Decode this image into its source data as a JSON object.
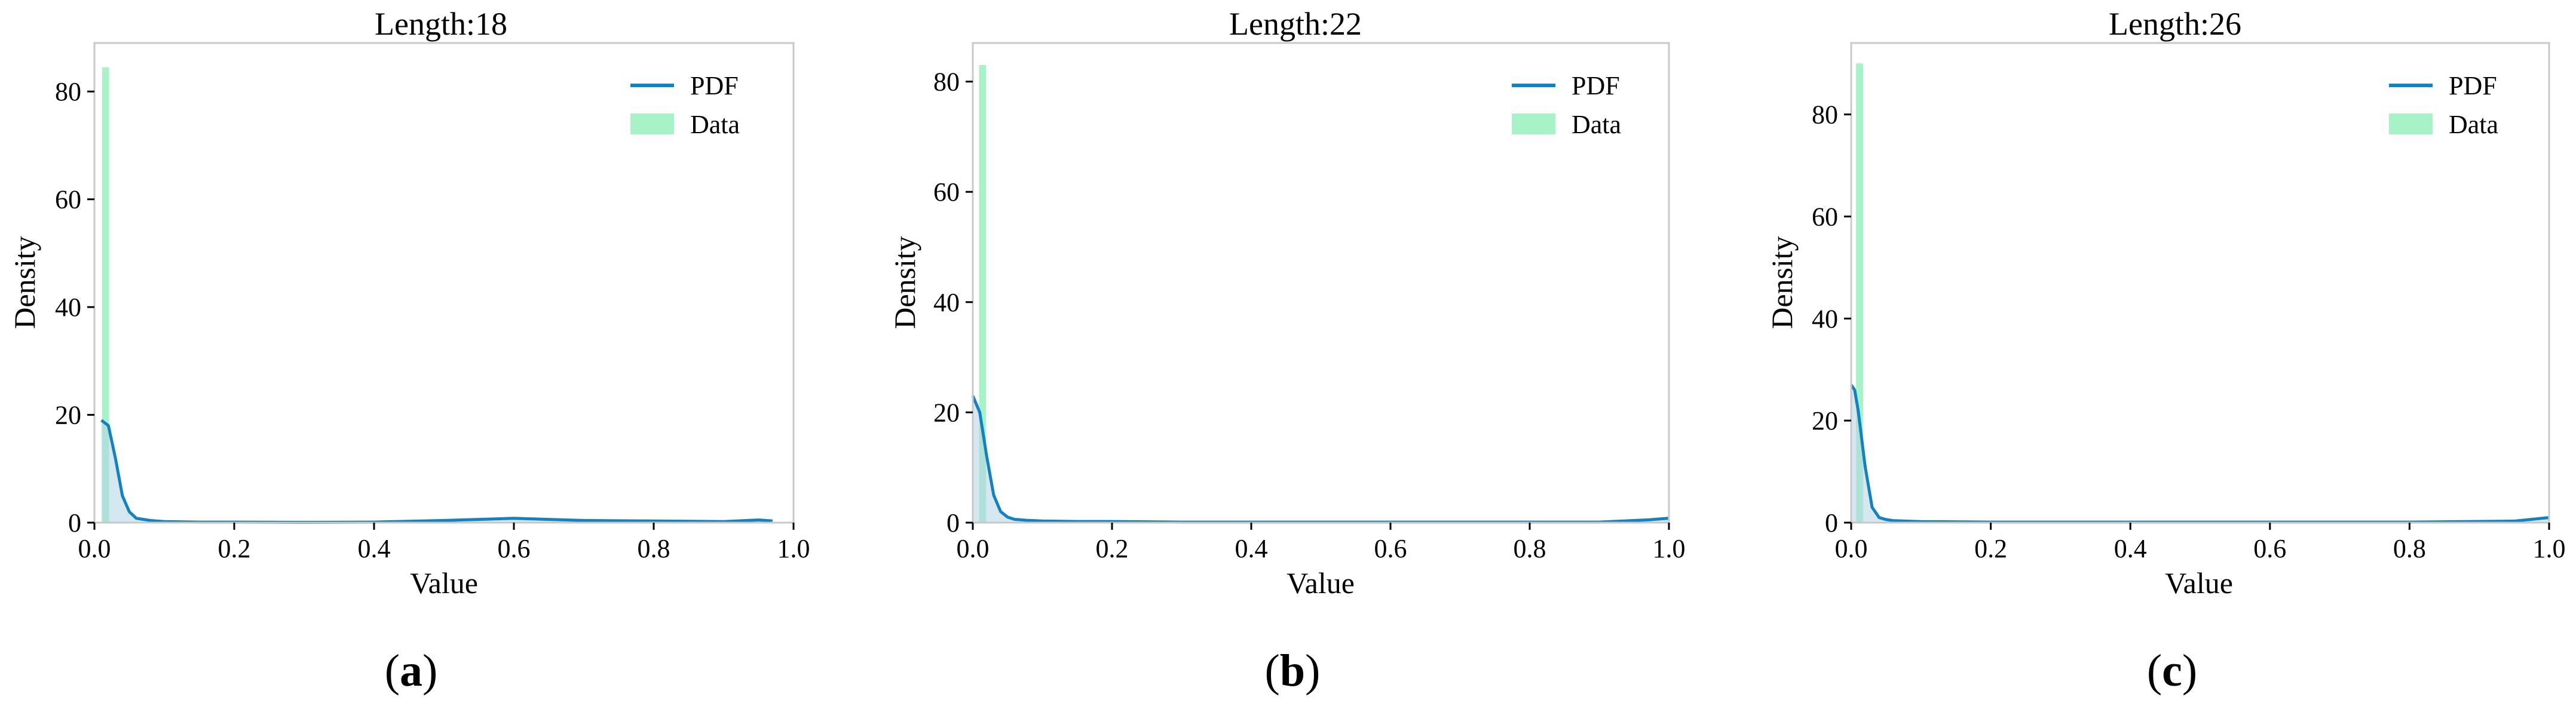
{
  "figure": {
    "colors": {
      "pdf_line": "#1582c0",
      "pdf_fill": "#b3d4e4",
      "data_bar": "#a8f2c8",
      "frame": "#c8c8c8",
      "text": "#000000"
    }
  },
  "chart_data": [
    {
      "type": "bar",
      "title": "Length:18",
      "xlabel": "Value",
      "ylabel": "Density",
      "caption": "(a)",
      "caption_parts": [
        "(",
        "a",
        ")"
      ],
      "xlim": [
        0.0,
        1.0
      ],
      "ylim": [
        0,
        89
      ],
      "xticks": [
        0.0,
        0.2,
        0.4,
        0.6,
        0.8,
        1.0
      ],
      "xtick_labels": [
        "0.0",
        "0.2",
        "0.4",
        "0.6",
        "0.8",
        "1.0"
      ],
      "yticks": [
        0,
        20,
        40,
        60,
        80
      ],
      "ytick_labels": [
        "0",
        "20",
        "40",
        "60",
        "80"
      ],
      "legend": [
        "PDF",
        "Data"
      ],
      "legend_position": "top-right",
      "series": [
        {
          "name": "Data",
          "kind": "histogram",
          "bins": [
            {
              "x0": 0.011,
              "x1": 0.021,
              "value": 84.5
            }
          ]
        },
        {
          "name": "PDF",
          "kind": "line",
          "x": [
            0.01,
            0.02,
            0.03,
            0.04,
            0.05,
            0.06,
            0.08,
            0.1,
            0.15,
            0.2,
            0.3,
            0.4,
            0.5,
            0.55,
            0.6,
            0.65,
            0.7,
            0.8,
            0.9,
            0.95,
            0.97
          ],
          "y": [
            19,
            18,
            12,
            5,
            2,
            0.8,
            0.4,
            0.2,
            0.1,
            0.1,
            0.05,
            0.1,
            0.4,
            0.6,
            0.8,
            0.6,
            0.4,
            0.3,
            0.2,
            0.5,
            0.3
          ]
        }
      ]
    },
    {
      "type": "bar",
      "title": "Length:22",
      "xlabel": "Value",
      "ylabel": "Density",
      "caption": "(b)",
      "caption_parts": [
        "(",
        "b",
        ")"
      ],
      "xlim": [
        0.0,
        1.0
      ],
      "ylim": [
        0,
        87
      ],
      "xticks": [
        0.0,
        0.2,
        0.4,
        0.6,
        0.8,
        1.0
      ],
      "xtick_labels": [
        "0.0",
        "0.2",
        "0.4",
        "0.6",
        "0.8",
        "1.0"
      ],
      "yticks": [
        0,
        20,
        40,
        60,
        80
      ],
      "ytick_labels": [
        "0",
        "20",
        "40",
        "60",
        "80"
      ],
      "legend": [
        "PDF",
        "Data"
      ],
      "legend_position": "top-right",
      "series": [
        {
          "name": "Data",
          "kind": "histogram",
          "bins": [
            {
              "x0": 0.009,
              "x1": 0.019,
              "value": 83
            }
          ]
        },
        {
          "name": "PDF",
          "kind": "line",
          "x": [
            0.0,
            0.01,
            0.02,
            0.03,
            0.04,
            0.05,
            0.06,
            0.08,
            0.1,
            0.15,
            0.2,
            0.3,
            0.5,
            0.7,
            0.9,
            0.97,
            1.0
          ],
          "y": [
            23,
            20,
            12,
            5,
            2,
            1,
            0.6,
            0.4,
            0.3,
            0.2,
            0.2,
            0.1,
            0.1,
            0.1,
            0.1,
            0.5,
            0.8
          ]
        }
      ]
    },
    {
      "type": "bar",
      "title": "Length:26",
      "xlabel": "Value",
      "ylabel": "Density",
      "caption": "(c)",
      "caption_parts": [
        "(",
        "c",
        ")"
      ],
      "xlim": [
        0.0,
        1.0
      ],
      "ylim": [
        0,
        94
      ],
      "xticks": [
        0.0,
        0.2,
        0.4,
        0.6,
        0.8,
        1.0
      ],
      "xtick_labels": [
        "0.0",
        "0.2",
        "0.4",
        "0.6",
        "0.8",
        "1.0"
      ],
      "yticks": [
        0,
        20,
        40,
        60,
        80
      ],
      "ytick_labels": [
        "0",
        "20",
        "40",
        "60",
        "80"
      ],
      "legend": [
        "PDF",
        "Data"
      ],
      "legend_position": "top-right",
      "series": [
        {
          "name": "Data",
          "kind": "histogram",
          "bins": [
            {
              "x0": 0.007,
              "x1": 0.017,
              "value": 90
            }
          ]
        },
        {
          "name": "PDF",
          "kind": "line",
          "x": [
            0.0,
            0.005,
            0.01,
            0.02,
            0.03,
            0.04,
            0.05,
            0.06,
            0.08,
            0.1,
            0.2,
            0.4,
            0.6,
            0.8,
            0.95,
            1.0
          ],
          "y": [
            27,
            26,
            22,
            11,
            3,
            1,
            0.6,
            0.4,
            0.3,
            0.2,
            0.1,
            0.1,
            0.1,
            0.1,
            0.3,
            1.0
          ]
        }
      ]
    }
  ]
}
